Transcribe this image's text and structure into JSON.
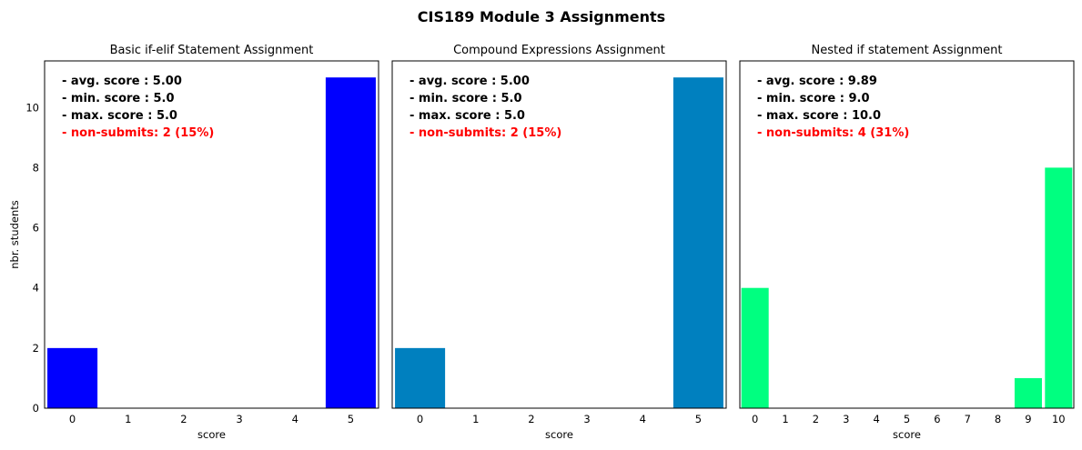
{
  "chart_data": {
    "title": "CIS189 Module 3 Assignments",
    "shared_ylabel": "nbr. students",
    "ylim": [
      0,
      11.55
    ],
    "yticks": [
      0,
      2,
      4,
      6,
      8,
      10
    ],
    "panels": [
      {
        "type": "bar",
        "title": "Basic if-elif Statement Assignment",
        "xlabel": "score",
        "categories": [
          "0",
          "1",
          "2",
          "3",
          "4",
          "5"
        ],
        "values": [
          2,
          0,
          0,
          0,
          0,
          11
        ],
        "color": "#0000ff",
        "stats": [
          "- avg. score : 5.00",
          "- min. score : 5.0",
          "- max. score : 5.0"
        ],
        "non_submits": "- non-submits: 2 (15%)"
      },
      {
        "type": "bar",
        "title": "Compound Expressions Assignment",
        "xlabel": "score",
        "categories": [
          "0",
          "1",
          "2",
          "3",
          "4",
          "5"
        ],
        "values": [
          2,
          0,
          0,
          0,
          0,
          11
        ],
        "color": "#0080bf",
        "stats": [
          "- avg. score : 5.00",
          "- min. score : 5.0",
          "- max. score : 5.0"
        ],
        "non_submits": "- non-submits: 2 (15%)"
      },
      {
        "type": "bar",
        "title": "Nested if statement Assignment",
        "xlabel": "score",
        "categories": [
          "0",
          "1",
          "2",
          "3",
          "4",
          "5",
          "6",
          "7",
          "8",
          "9",
          "10"
        ],
        "values": [
          4,
          0,
          0,
          0,
          0,
          0,
          0,
          0,
          0,
          1,
          8
        ],
        "color": "#00ff80",
        "stats": [
          "- avg. score : 9.89",
          "- min. score : 9.0",
          "- max. score : 10.0"
        ],
        "non_submits": "- non-submits: 4 (31%)"
      }
    ],
    "non_submit_color": "#ff0000",
    "grid": false
  }
}
